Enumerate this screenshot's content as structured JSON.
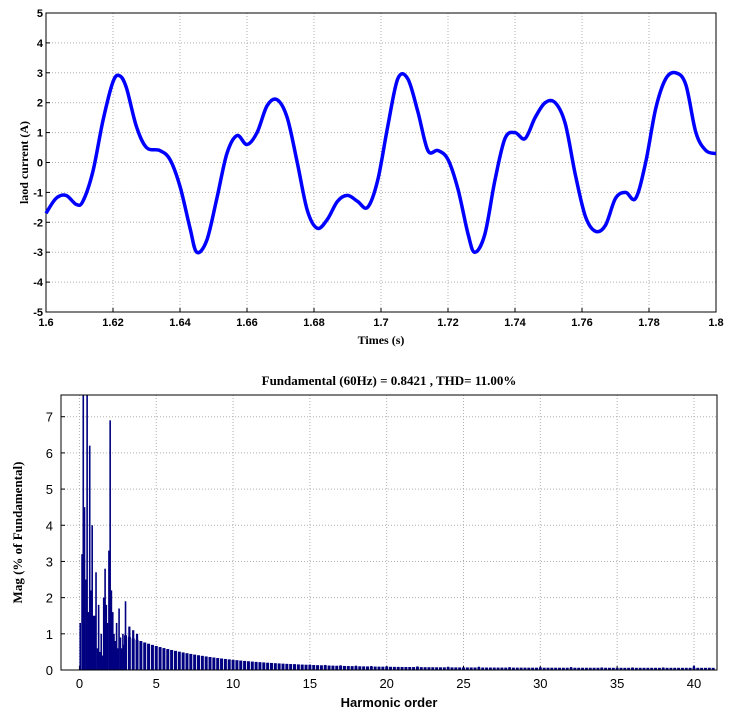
{
  "chart_data": [
    {
      "type": "line",
      "title": "",
      "xlabel": "Times (s)",
      "ylabel": "laod current (A)",
      "xlim": [
        1.6,
        1.8
      ],
      "ylim": [
        -5,
        5
      ],
      "grid": true,
      "xticks": [
        "1.6",
        "1.62",
        "1.64",
        "1.66",
        "1.68",
        "1.7",
        "1.72",
        "1.74",
        "1.76",
        "1.78",
        "1.8"
      ],
      "yticks": [
        "5",
        "4",
        "3",
        "2",
        "1",
        "0",
        "-1",
        "-2",
        "-3",
        "-4",
        "-5"
      ],
      "series": [
        {
          "color": "#0000ff",
          "x": [
            1.6,
            1.603,
            1.606,
            1.609,
            1.611,
            1.614,
            1.617,
            1.62,
            1.622,
            1.624,
            1.627,
            1.63,
            1.634,
            1.637,
            1.64,
            1.643,
            1.645,
            1.648,
            1.651,
            1.654,
            1.657,
            1.66,
            1.663,
            1.666,
            1.669,
            1.672,
            1.675,
            1.678,
            1.681,
            1.684,
            1.687,
            1.69,
            1.693,
            1.696,
            1.699,
            1.702,
            1.705,
            1.708,
            1.711,
            1.714,
            1.717,
            1.72,
            1.723,
            1.726,
            1.728,
            1.731,
            1.734,
            1.737,
            1.74,
            1.743,
            1.746,
            1.749,
            1.752,
            1.755,
            1.758,
            1.761,
            1.764,
            1.767,
            1.77,
            1.773,
            1.776,
            1.779,
            1.782,
            1.785,
            1.788,
            1.791,
            1.794,
            1.797,
            1.8
          ],
          "y": [
            -1.7,
            -1.2,
            -1.1,
            -1.4,
            -1.3,
            -0.3,
            1.4,
            2.7,
            2.9,
            2.5,
            1.2,
            0.5,
            0.4,
            0.1,
            -0.8,
            -2.2,
            -3.0,
            -2.6,
            -1.2,
            0.3,
            0.9,
            0.6,
            1.0,
            1.9,
            2.1,
            1.5,
            0.0,
            -1.6,
            -2.2,
            -1.9,
            -1.3,
            -1.1,
            -1.3,
            -1.5,
            -0.6,
            1.2,
            2.8,
            2.8,
            1.7,
            0.4,
            0.4,
            0.1,
            -0.9,
            -2.4,
            -3.0,
            -2.4,
            -0.6,
            0.8,
            1.0,
            0.8,
            1.5,
            2.0,
            2.0,
            1.3,
            -0.4,
            -1.8,
            -2.3,
            -2.1,
            -1.2,
            -1.0,
            -1.2,
            0.0,
            1.8,
            2.8,
            3.0,
            2.6,
            1.0,
            0.4,
            0.3
          ]
        }
      ]
    },
    {
      "type": "bar",
      "title": "Fundamental (60Hz) = 0.8421 , THD= 11.00%",
      "xlabel": "Harmonic order",
      "ylabel": "Mag (% of Fundamental)",
      "xlim": [
        -1.2,
        41.5
      ],
      "ylim": [
        0,
        7.6
      ],
      "grid": true,
      "xticks": [
        "0",
        "5",
        "10",
        "15",
        "20",
        "25",
        "30",
        "35",
        "40"
      ],
      "yticks": [
        "7",
        "6",
        "5",
        "4",
        "3",
        "2",
        "1",
        "0"
      ],
      "color": "#000080",
      "x": [
        0.05,
        0.17,
        0.25,
        0.33,
        0.42,
        0.5,
        0.58,
        0.67,
        0.75,
        0.83,
        0.92,
        1.0,
        1.08,
        1.17,
        1.25,
        1.33,
        1.42,
        1.5,
        1.58,
        1.67,
        1.75,
        1.83,
        1.92,
        2.0,
        2.08,
        2.17,
        2.25,
        2.33,
        2.42,
        2.5,
        2.58,
        2.67,
        2.75,
        2.83,
        2.92,
        3.0,
        3.25,
        3.5,
        3.75,
        4.0,
        4.25,
        4.5,
        5.0,
        5.5,
        6.0,
        6.5,
        7.0,
        7.5,
        8.0,
        9.0,
        10.0,
        11.0,
        12.0,
        13.0,
        14.0,
        15.0,
        16.0,
        17.0,
        18.0,
        19.0,
        20.0,
        22.0,
        24.0,
        26.0,
        28.0,
        30.0,
        32.0,
        34.0,
        36.0,
        38.0,
        40.0,
        41.0
      ],
      "values": [
        1.3,
        3.2,
        7.6,
        4.5,
        2.5,
        7.6,
        1.6,
        6.2,
        2.2,
        4.0,
        1.5,
        1.5,
        2.7,
        0.6,
        1.8,
        0.5,
        1.0,
        0.4,
        2.0,
        2.8,
        1.8,
        1.3,
        3.3,
        6.9,
        2.2,
        1.6,
        1.0,
        0.8,
        1.3,
        0.6,
        1.7,
        0.9,
        0.6,
        1.0,
        0.7,
        1.9,
        1.2,
        1.1,
        1.0,
        0.8,
        0.7,
        0.6,
        0.55,
        0.5,
        0.45,
        0.4,
        0.38,
        0.35,
        0.3,
        0.28,
        0.25,
        0.22,
        0.2,
        0.18,
        0.16,
        0.15,
        0.14,
        0.13,
        0.12,
        0.11,
        0.1,
        0.1,
        0.09,
        0.09,
        0.08,
        0.08,
        0.08,
        0.07,
        0.07,
        0.07,
        0.12,
        0.06
      ]
    }
  ]
}
